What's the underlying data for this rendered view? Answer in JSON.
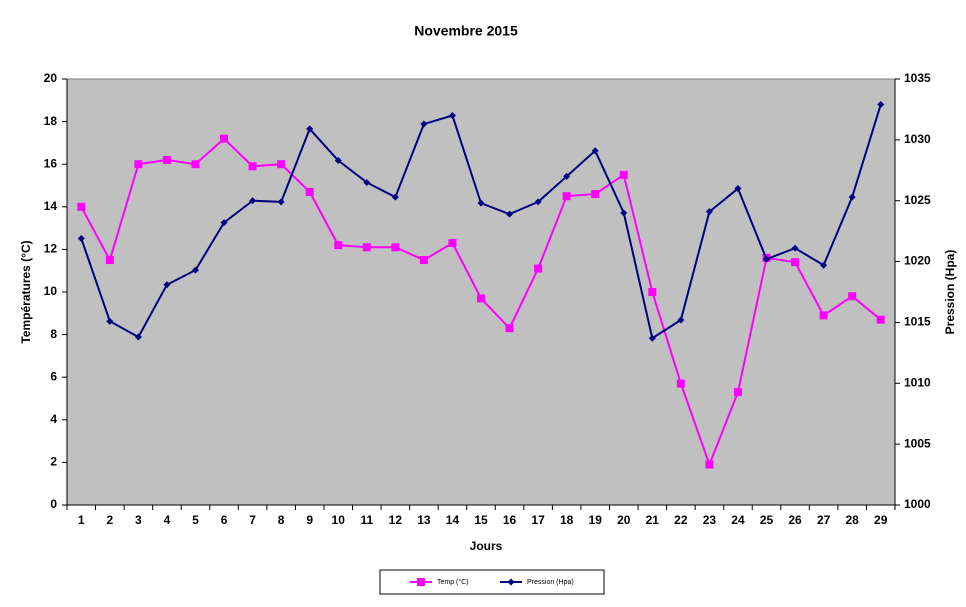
{
  "chart_data": {
    "type": "line",
    "title": "Novembre 2015",
    "x_label": "Jours",
    "y_label": "Températures (°C)",
    "y2_label": "Pression (Hpa)",
    "categories": [
      1,
      2,
      3,
      4,
      5,
      6,
      7,
      8,
      9,
      10,
      11,
      12,
      13,
      14,
      15,
      16,
      17,
      18,
      19,
      20,
      21,
      22,
      23,
      24,
      25,
      26,
      27,
      28,
      29
    ],
    "series": [
      {
        "name": "Temp (°C)",
        "color": "#ff00ff",
        "marker": "square",
        "values": [
          14.0,
          11.5,
          16.0,
          16.2,
          16.0,
          17.2,
          15.9,
          16.0,
          14.7,
          12.2,
          12.1,
          12.1,
          11.5,
          12.3,
          9.7,
          8.3,
          11.1,
          14.5,
          14.6,
          15.5,
          10.0,
          5.7,
          1.9,
          5.3,
          11.6,
          11.4,
          8.9,
          9.8,
          8.7
        ]
      },
      {
        "name": "Pression (Hpa)",
        "color": "#000080",
        "marker": "diamond",
        "axis": "y2",
        "values": [
          1021.9,
          1015.1,
          1013.8,
          1018.1,
          1019.3,
          1023.2,
          1025.0,
          1024.9,
          1030.9,
          1028.3,
          1026.5,
          1025.3,
          1031.3,
          1032.0,
          1024.8,
          1023.9,
          1024.9,
          1027.0,
          1029.1,
          1024.0,
          1013.7,
          1015.2,
          1024.1,
          1026.0,
          1020.2,
          1021.1,
          1019.7,
          1025.3,
          1032.9
        ]
      }
    ],
    "ylim": [
      0,
      20
    ],
    "yticks": [
      0,
      2,
      4,
      6,
      8,
      10,
      12,
      14,
      16,
      18,
      20
    ],
    "y2lim": [
      1000,
      1035
    ],
    "y2ticks": [
      1000,
      1005,
      1010,
      1015,
      1020,
      1025,
      1030,
      1035
    ],
    "plot_background": "#c0c0c0"
  }
}
